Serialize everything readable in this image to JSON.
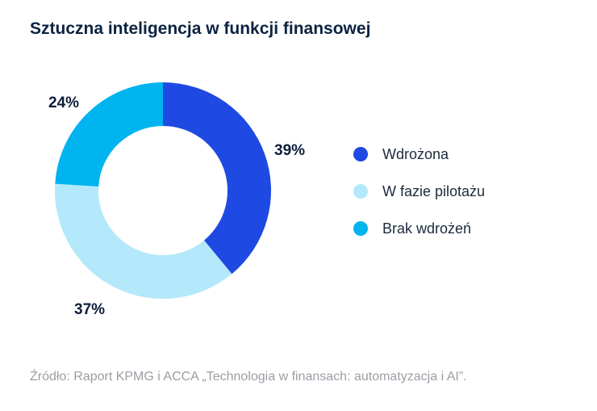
{
  "title": "Sztuczna inteligencja w funkcji finansowej",
  "source": "Źródło: Raport KPMG i ACCA „Technologia w finansach: automatyzacja i AI”.",
  "chart_data": {
    "type": "pie",
    "title": "Sztuczna inteligencja w funkcji finansowej",
    "donut": true,
    "legend_position": "right",
    "categories": [
      "Wdrożona",
      "W fazie pilotażu",
      "Brak wdrożeń"
    ],
    "values": [
      39,
      37,
      24
    ],
    "labels": [
      "39%",
      "37%",
      "24%"
    ],
    "colors": [
      "#1e49e2",
      "#b3e9fa",
      "#00b4ef"
    ]
  }
}
